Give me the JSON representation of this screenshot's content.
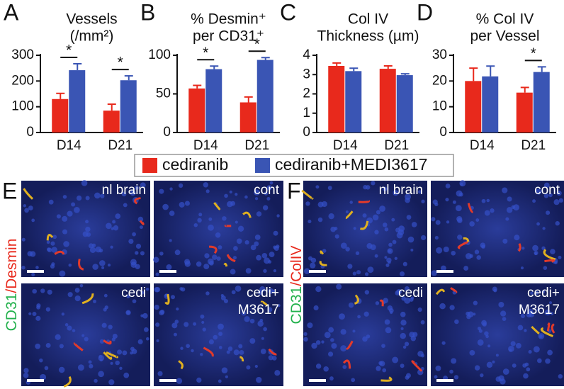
{
  "chart_data": [
    {
      "type": "bar",
      "label": "A",
      "title": [
        "Vessels",
        "(/mm²)"
      ],
      "categories": [
        "D14",
        "D21"
      ],
      "series": [
        {
          "name": "cediranib",
          "color": "#e8291c",
          "values": [
            130,
            85
          ],
          "errors": [
            22,
            25
          ]
        },
        {
          "name": "cediranib+MEDI3617",
          "color": "#3a55b4",
          "values": [
            242,
            203
          ],
          "errors": [
            25,
            17
          ]
        }
      ],
      "significance": [
        "*",
        "*"
      ],
      "ylim": [
        0,
        300
      ],
      "yticks": [
        0,
        100,
        200,
        300
      ]
    },
    {
      "type": "bar",
      "label": "B",
      "title": [
        "% Desmin⁺",
        "per CD31⁺"
      ],
      "categories": [
        "D14",
        "D21"
      ],
      "series": [
        {
          "name": "cediranib",
          "color": "#e8291c",
          "values": [
            57,
            39
          ],
          "errors": [
            4,
            7
          ]
        },
        {
          "name": "cediranib+MEDI3617",
          "color": "#3a55b4",
          "values": [
            82,
            94
          ],
          "errors": [
            4,
            3
          ]
        }
      ],
      "significance": [
        "*",
        "*"
      ],
      "ylim": [
        0,
        100
      ],
      "yticks": [
        0,
        50,
        100
      ]
    },
    {
      "type": "bar",
      "label": "C",
      "title": [
        "Col IV",
        "Thickness (µm)"
      ],
      "categories": [
        "D14",
        "D21"
      ],
      "series": [
        {
          "name": "cediranib",
          "color": "#e8291c",
          "values": [
            3.45,
            3.3
          ],
          "errors": [
            0.15,
            0.15
          ]
        },
        {
          "name": "cediranib+MEDI3617",
          "color": "#3a55b4",
          "values": [
            3.18,
            2.97
          ],
          "errors": [
            0.15,
            0.07
          ]
        }
      ],
      "significance": [
        null,
        null
      ],
      "ylim": [
        0,
        4
      ],
      "yticks": [
        0,
        1,
        2,
        3,
        4
      ]
    },
    {
      "type": "bar",
      "label": "D",
      "title": [
        "% Col IV",
        "per Vessel"
      ],
      "categories": [
        "D14",
        "D21"
      ],
      "series": [
        {
          "name": "cediranib",
          "color": "#e8291c",
          "values": [
            20,
            15.5
          ],
          "errors": [
            5,
            2
          ]
        },
        {
          "name": "cediranib+MEDI3617",
          "color": "#3a55b4",
          "values": [
            21.8,
            23.5
          ],
          "errors": [
            4,
            2
          ]
        }
      ],
      "significance": [
        null,
        "*"
      ],
      "ylim": [
        0,
        30
      ],
      "yticks": [
        0,
        10,
        20,
        30
      ]
    }
  ],
  "image_panels": [
    {
      "label": "E",
      "stain": [
        "CD31",
        "/",
        "Desmin"
      ],
      "images": [
        [
          "nl brain"
        ],
        [
          "cont"
        ],
        [
          "cedi"
        ],
        [
          "cedi+",
          "M3617"
        ]
      ]
    },
    {
      "label": "F",
      "stain": [
        "CD31",
        "/",
        "ColIV"
      ],
      "images": [
        [
          "nl brain"
        ],
        [
          "cont"
        ],
        [
          "cedi"
        ],
        [
          "cedi+",
          "M3617"
        ]
      ]
    }
  ]
}
